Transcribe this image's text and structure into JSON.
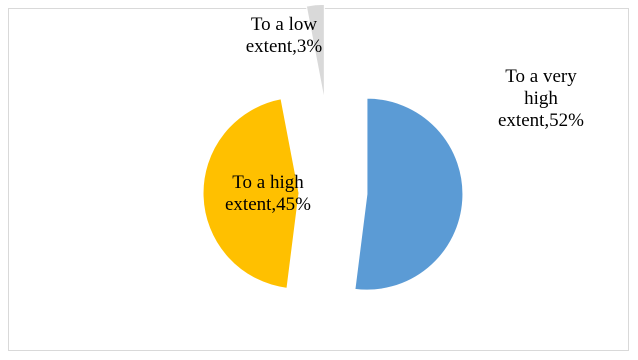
{
  "chart_data": {
    "type": "pie",
    "title": "",
    "legend": "none",
    "series": [
      {
        "slices": [
          {
            "label_lines": [
              "To a very",
              "high",
              "extent,52%"
            ],
            "category": "To a very high extent",
            "value": 52,
            "color": "#5b9bd5"
          },
          {
            "label_lines": [
              "To a high",
              "extent,45%"
            ],
            "category": "To a high extent",
            "value": 45,
            "color": "#ffc000"
          },
          {
            "label_lines": [
              "To a low",
              "extent,3%"
            ],
            "category": "To a low extent",
            "value": 3,
            "color": "#d9d9d9"
          }
        ]
      }
    ]
  }
}
